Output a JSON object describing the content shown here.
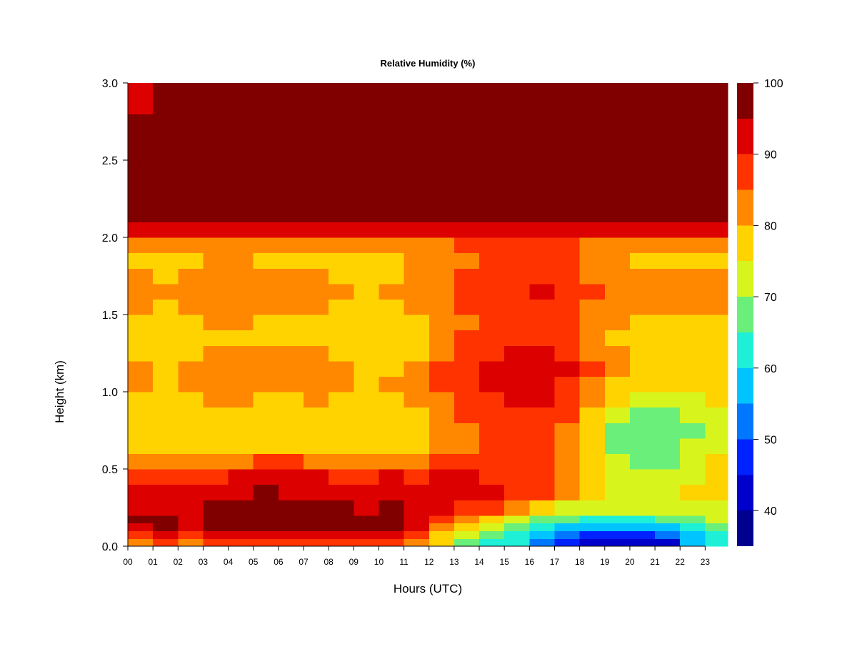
{
  "chart_data": {
    "type": "heatmap",
    "title": "Relative Humidity (%)",
    "xlabel": "Hours (UTC)",
    "ylabel": "Height (km)",
    "x_unit": "hour UTC",
    "y_unit": "km",
    "xlim": [
      0,
      23.9
    ],
    "ylim": [
      0,
      3.0
    ],
    "x_ticks": [
      {
        "value": 0,
        "label": "00"
      },
      {
        "value": 1,
        "label": "01"
      },
      {
        "value": 2,
        "label": "02"
      },
      {
        "value": 3,
        "label": "03"
      },
      {
        "value": 4,
        "label": "04"
      },
      {
        "value": 5,
        "label": "05"
      },
      {
        "value": 6,
        "label": "06"
      },
      {
        "value": 7,
        "label": "07"
      },
      {
        "value": 8,
        "label": "08"
      },
      {
        "value": 9,
        "label": "09"
      },
      {
        "value": 10,
        "label": "10"
      },
      {
        "value": 11,
        "label": "11"
      },
      {
        "value": 12,
        "label": "12"
      },
      {
        "value": 13,
        "label": "13"
      },
      {
        "value": 14,
        "label": "14"
      },
      {
        "value": 15,
        "label": "15"
      },
      {
        "value": 16,
        "label": "16"
      },
      {
        "value": 17,
        "label": "17"
      },
      {
        "value": 18,
        "label": "18"
      },
      {
        "value": 19,
        "label": "19"
      },
      {
        "value": 20,
        "label": "20"
      },
      {
        "value": 21,
        "label": "21"
      },
      {
        "value": 22,
        "label": "22"
      },
      {
        "value": 23,
        "label": "23"
      }
    ],
    "y_ticks": [
      {
        "value": 0.0,
        "label": "0.0"
      },
      {
        "value": 0.5,
        "label": "0.5"
      },
      {
        "value": 1.0,
        "label": "1.0"
      },
      {
        "value": 1.5,
        "label": "1.5"
      },
      {
        "value": 2.0,
        "label": "2.0"
      },
      {
        "value": 2.5,
        "label": "2.5"
      },
      {
        "value": 3.0,
        "label": "3.0"
      }
    ],
    "grid": false,
    "legend": "right colorbar",
    "colorbar": {
      "range": [
        35,
        100
      ],
      "ticks": [
        {
          "value": 40,
          "label": "40"
        },
        {
          "value": 50,
          "label": "50"
        },
        {
          "value": 60,
          "label": "60"
        },
        {
          "value": 70,
          "label": "70"
        },
        {
          "value": 80,
          "label": "80"
        },
        {
          "value": 90,
          "label": "90"
        },
        {
          "value": 100,
          "label": "100"
        }
      ],
      "levels": [
        {
          "from": 35,
          "to": 40,
          "color": "#00008f"
        },
        {
          "from": 40,
          "to": 45,
          "color": "#0000cc"
        },
        {
          "from": 45,
          "to": 50,
          "color": "#0022ff"
        },
        {
          "from": 50,
          "to": 55,
          "color": "#0077ff"
        },
        {
          "from": 55,
          "to": 60,
          "color": "#00c4ff"
        },
        {
          "from": 60,
          "to": 65,
          "color": "#1ef0d8"
        },
        {
          "from": 65,
          "to": 70,
          "color": "#6af07a"
        },
        {
          "from": 70,
          "to": 75,
          "color": "#d7f51c"
        },
        {
          "from": 75,
          "to": 80,
          "color": "#ffd300"
        },
        {
          "from": 80,
          "to": 85,
          "color": "#ff8800"
        },
        {
          "from": 85,
          "to": 90,
          "color": "#ff3300"
        },
        {
          "from": 90,
          "to": 95,
          "color": "#dd0000"
        },
        {
          "from": 95,
          "to": 100,
          "color": "#800000"
        }
      ]
    },
    "time_bins": [
      0,
      1,
      2,
      3,
      4,
      5,
      6,
      7,
      8,
      9,
      10,
      11,
      12,
      13,
      14,
      15,
      16,
      17,
      18,
      19,
      20,
      21,
      22,
      23
    ],
    "height_bins": [
      0.0,
      0.05,
      0.1,
      0.15,
      0.2,
      0.3,
      0.4,
      0.5,
      0.6,
      0.7,
      0.8,
      0.9,
      1.0,
      1.1,
      1.2,
      1.3,
      1.4,
      1.5,
      1.6,
      1.7,
      1.8,
      1.9,
      2.0,
      2.1,
      2.2,
      2.4,
      2.6,
      2.8,
      3.0
    ],
    "values": [
      [
        82,
        89,
        84,
        86,
        89,
        88,
        85,
        85,
        87,
        86,
        88,
        84,
        75,
        68,
        64,
        60,
        52,
        48,
        44,
        42,
        40,
        44,
        55,
        62
      ],
      [
        87,
        92,
        88,
        90,
        93,
        93,
        92,
        92,
        93,
        92,
        94,
        89,
        78,
        71,
        66,
        62,
        56,
        52,
        48,
        46,
        46,
        50,
        58,
        64
      ],
      [
        92,
        95,
        93,
        95,
        97,
        97,
        96,
        96,
        96,
        95,
        97,
        91,
        84,
        76,
        70,
        65,
        61,
        58,
        55,
        55,
        56,
        59,
        63,
        67
      ],
      [
        95,
        95,
        94,
        96,
        97,
        98,
        97,
        97,
        96,
        95,
        97,
        93,
        89,
        82,
        77,
        72,
        68,
        65,
        63,
        63,
        64,
        66,
        68,
        70
      ],
      [
        94,
        93,
        93,
        95,
        96,
        97,
        97,
        96,
        95,
        94,
        96,
        93,
        92,
        89,
        85,
        81,
        77,
        73,
        70,
        70,
        70,
        71,
        72,
        74
      ],
      [
        92,
        91,
        91,
        92,
        93,
        95,
        94,
        94,
        93,
        92,
        93,
        92,
        92,
        91,
        90,
        88,
        86,
        80,
        76,
        74,
        72,
        73,
        75,
        77
      ],
      [
        88,
        87,
        87,
        88,
        90,
        91,
        91,
        90,
        89,
        88,
        90,
        89,
        90,
        90,
        89,
        89,
        88,
        82,
        77,
        73,
        71,
        72,
        74,
        77
      ],
      [
        82,
        81,
        82,
        83,
        84,
        85,
        85,
        84,
        84,
        83,
        84,
        83,
        85,
        86,
        86,
        86,
        86,
        82,
        76,
        70,
        68,
        69,
        72,
        76
      ],
      [
        78,
        77,
        78,
        79,
        79,
        79,
        78,
        79,
        79,
        78,
        79,
        79,
        81,
        83,
        85,
        85,
        86,
        82,
        75,
        68,
        66,
        67,
        70,
        74
      ],
      [
        76,
        75,
        76,
        77,
        77,
        76,
        76,
        77,
        76,
        75,
        76,
        77,
        80,
        83,
        86,
        86,
        87,
        83,
        76,
        69,
        66,
        66,
        69,
        73
      ],
      [
        77,
        76,
        77,
        78,
        78,
        77,
        77,
        78,
        77,
        76,
        77,
        78,
        81,
        85,
        87,
        88,
        89,
        85,
        78,
        72,
        68,
        68,
        70,
        74
      ],
      [
        79,
        78,
        79,
        80,
        80,
        79,
        79,
        80,
        79,
        78,
        79,
        80,
        83,
        87,
        89,
        90,
        91,
        87,
        80,
        75,
        71,
        71,
        72,
        75
      ],
      [
        80,
        79,
        80,
        82,
        82,
        80,
        80,
        81,
        80,
        79,
        80,
        81,
        85,
        89,
        91,
        92,
        93,
        89,
        84,
        78,
        75,
        75,
        76,
        77
      ],
      [
        80,
        79,
        80,
        82,
        82,
        81,
        80,
        81,
        80,
        78,
        79,
        80,
        85,
        89,
        91,
        92,
        93,
        90,
        85,
        80,
        78,
        78,
        78,
        78
      ],
      [
        79,
        78,
        79,
        81,
        81,
        80,
        80,
        80,
        79,
        77,
        78,
        79,
        83,
        87,
        89,
        90,
        91,
        88,
        83,
        80,
        78,
        78,
        78,
        78
      ],
      [
        78,
        77,
        78,
        79,
        79,
        78,
        78,
        78,
        77,
        75,
        76,
        77,
        81,
        85,
        87,
        88,
        89,
        86,
        82,
        79,
        78,
        78,
        78,
        78
      ],
      [
        79,
        78,
        79,
        80,
        80,
        79,
        79,
        79,
        78,
        76,
        77,
        78,
        81,
        84,
        86,
        87,
        88,
        86,
        82,
        80,
        79,
        79,
        79,
        79
      ],
      [
        80,
        79,
        80,
        81,
        81,
        80,
        80,
        80,
        79,
        78,
        79,
        80,
        82,
        85,
        87,
        88,
        89,
        87,
        84,
        81,
        80,
        80,
        80,
        80
      ],
      [
        81,
        80,
        81,
        82,
        82,
        81,
        81,
        81,
        80,
        79,
        80,
        81,
        83,
        86,
        88,
        89,
        90,
        88,
        85,
        82,
        81,
        81,
        81,
        81
      ],
      [
        80,
        79,
        80,
        81,
        81,
        80,
        80,
        80,
        79,
        78,
        79,
        80,
        82,
        85,
        87,
        88,
        89,
        87,
        84,
        81,
        80,
        80,
        80,
        80
      ],
      [
        79,
        79,
        79,
        80,
        80,
        79,
        79,
        79,
        79,
        78,
        79,
        80,
        81,
        83,
        85,
        86,
        87,
        85,
        82,
        80,
        79,
        79,
        79,
        79
      ],
      [
        83,
        82,
        83,
        83,
        83,
        83,
        83,
        83,
        83,
        82,
        83,
        83,
        84,
        85,
        86,
        86,
        87,
        86,
        84,
        83,
        82,
        82,
        82,
        83
      ],
      [
        91,
        90,
        90,
        91,
        91,
        91,
        91,
        91,
        91,
        90,
        91,
        91,
        92,
        92,
        93,
        93,
        93,
        92,
        91,
        90,
        90,
        90,
        90,
        91
      ],
      [
        97,
        96,
        96,
        97,
        97,
        97,
        97,
        97,
        97,
        96,
        97,
        97,
        98,
        98,
        98,
        98,
        98,
        98,
        97,
        97,
        96,
        96,
        96,
        96
      ],
      [
        98,
        98,
        98,
        98,
        98,
        98,
        98,
        98,
        98,
        98,
        98,
        98,
        98,
        98,
        98,
        98,
        98,
        98,
        98,
        98,
        98,
        98,
        98,
        98
      ],
      [
        97,
        97,
        98,
        98,
        98,
        98,
        98,
        98,
        98,
        98,
        98,
        98,
        98,
        98,
        98,
        98,
        98,
        98,
        98,
        98,
        98,
        98,
        98,
        97
      ],
      [
        96,
        97,
        97,
        97,
        97,
        97,
        97,
        97,
        97,
        97,
        98,
        98,
        98,
        98,
        98,
        98,
        98,
        98,
        98,
        98,
        98,
        98,
        97,
        96
      ],
      [
        94,
        95,
        96,
        96,
        96,
        96,
        96,
        96,
        96,
        96,
        97,
        96,
        96,
        97,
        98,
        98,
        98,
        98,
        97,
        96,
        96,
        96,
        95,
        95
      ],
      [
        93,
        94,
        95,
        95,
        95,
        95,
        95,
        95,
        95,
        95,
        96,
        94,
        93,
        96,
        98,
        98,
        98,
        98,
        96,
        95,
        95,
        94,
        94,
        93
      ]
    ]
  }
}
